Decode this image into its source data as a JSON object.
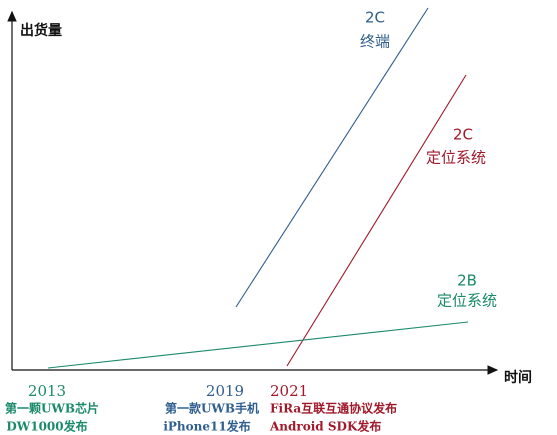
{
  "axes": {
    "y_label": "出货量",
    "x_label": "时间"
  },
  "curves": [
    {
      "lines": [
        "2C",
        "终端"
      ]
    },
    {
      "lines": [
        "2C",
        "定位系统"
      ]
    },
    {
      "lines": [
        "2B",
        "定位系统"
      ]
    }
  ],
  "milestones": [
    {
      "year": "2013",
      "lines": [
        "第一颗UWB芯片",
        "DW1000发布"
      ]
    },
    {
      "year": "2019",
      "lines": [
        "第一款UWB手机",
        "iPhone11发布"
      ]
    },
    {
      "year": "2021",
      "lines": [
        "FiRa互联互通协议发布",
        "Android SDK发布"
      ]
    }
  ]
}
